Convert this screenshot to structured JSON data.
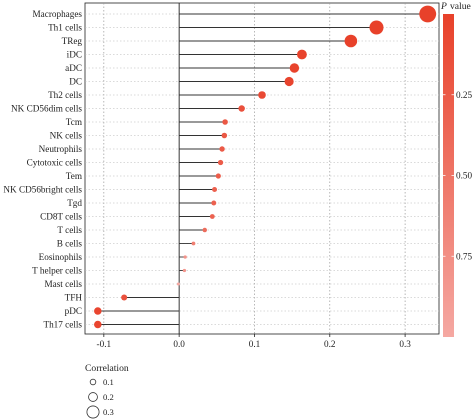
{
  "chart_data": {
    "type": "lollipop",
    "categories": [
      "Macrophages",
      "Th1 cells",
      "TReg",
      "iDC",
      "aDC",
      "DC",
      "Th2 cells",
      "NK CD56dim cells",
      "Tcm",
      "NK cells",
      "Neutrophils",
      "Cytotoxic cells",
      "Tem",
      "NK CD56bright cells",
      "Tgd",
      "CD8T cells",
      "T cells",
      "B cells",
      "Eosinophils",
      "T helper cells",
      "Mast cells",
      "TFH",
      "pDC",
      "Th17 cells"
    ],
    "values": [
      0.33,
      0.262,
      0.228,
      0.163,
      0.153,
      0.146,
      0.11,
      0.083,
      0.061,
      0.06,
      0.057,
      0.055,
      0.052,
      0.047,
      0.046,
      0.044,
      0.034,
      0.019,
      0.008,
      0.007,
      -0.001,
      -0.073,
      -0.108,
      -0.108
    ],
    "p_values": [
      0.0,
      0.0,
      0.0,
      0.02,
      0.02,
      0.03,
      0.08,
      0.15,
      0.22,
      0.22,
      0.24,
      0.25,
      0.27,
      0.3,
      0.31,
      0.32,
      0.42,
      0.6,
      0.8,
      0.82,
      0.98,
      0.16,
      0.04,
      0.04
    ],
    "xlim": [
      -0.125,
      0.345
    ],
    "x_ticks": [
      "-0.1",
      "0.0",
      "0.1",
      "0.2",
      "0.3"
    ],
    "x_tick_values": [
      -0.1,
      0.0,
      0.1,
      0.2,
      0.3
    ],
    "colorbar": {
      "title": "P value",
      "ticks": [
        "0.75",
        "0.50",
        "0.25"
      ],
      "tick_values": [
        0.75,
        0.5,
        0.25
      ],
      "color_low": "#e8412a",
      "color_high": "#f5a8a2"
    },
    "size_legend": {
      "title": "Correlation",
      "labels": [
        "0.1",
        "0.2",
        "0.3"
      ],
      "values": [
        0.1,
        0.2,
        0.3
      ]
    },
    "grid": true,
    "dot_color": "#e8604c"
  }
}
